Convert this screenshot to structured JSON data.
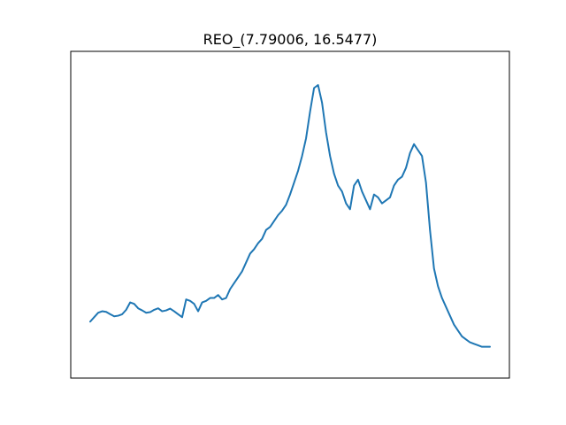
{
  "chart_data": {
    "type": "line",
    "title": "REO_(7.79006, 16.5477)",
    "xlabel": "",
    "ylabel": "",
    "x_ticks_visible": false,
    "y_ticks_visible": false,
    "grid": false,
    "legend": "none",
    "xlim": [
      0,
      100
    ],
    "ylim": [
      0,
      100
    ],
    "series": [
      {
        "color": "#1f77b4",
        "x": [
          0,
          1,
          2,
          3,
          4,
          5,
          6,
          7,
          8,
          9,
          10,
          11,
          12,
          13,
          14,
          15,
          16,
          17,
          18,
          19,
          20,
          21,
          22,
          23,
          24,
          25,
          26,
          27,
          28,
          29,
          30,
          31,
          32,
          33,
          34,
          35,
          36,
          37,
          38,
          39,
          40,
          41,
          42,
          43,
          44,
          45,
          46,
          47,
          48,
          49,
          50,
          51,
          52,
          53,
          54,
          55,
          56,
          57,
          58,
          59,
          60,
          61,
          62,
          63,
          64,
          65,
          66,
          67,
          68,
          69,
          70,
          71,
          72,
          73,
          74,
          75,
          76,
          77,
          78,
          79,
          80,
          81,
          82,
          83,
          84,
          85,
          86,
          87,
          88,
          89,
          90,
          91,
          92,
          93,
          94,
          95,
          96,
          97,
          98,
          99,
          100
        ],
        "y": [
          14,
          15.5,
          17,
          17.5,
          17.3,
          16.5,
          15.8,
          16,
          16.5,
          18,
          20.5,
          20,
          18.5,
          17.8,
          17,
          17.2,
          18,
          18.5,
          17.5,
          17.8,
          18.4,
          17.5,
          16.5,
          15.5,
          21.5,
          21,
          20,
          17.5,
          20.5,
          21,
          22,
          22,
          23,
          21.5,
          22,
          25,
          27,
          29,
          31,
          34,
          37,
          38.5,
          40.5,
          42,
          45,
          46,
          48,
          50,
          51.5,
          53.5,
          57,
          61,
          65,
          70,
          76,
          85,
          93,
          94,
          88,
          78,
          70,
          64,
          60,
          58,
          54,
          52,
          60,
          62,
          58,
          55,
          52,
          57,
          56,
          54,
          55,
          56,
          60,
          62,
          63,
          66,
          71,
          74,
          72,
          70,
          61,
          45,
          32,
          26,
          22,
          19,
          16,
          13,
          11,
          9,
          8,
          7,
          6.5,
          6,
          5.5,
          5.5,
          5.5
        ]
      }
    ]
  }
}
